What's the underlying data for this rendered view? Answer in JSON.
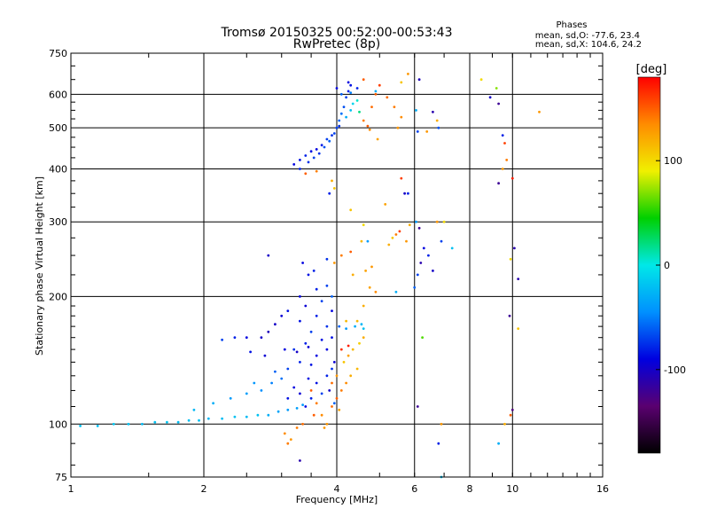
{
  "chart_data": {
    "type": "scatter",
    "title": "Tromsø 20150325 00:52:00-00:53:43",
    "subtitle": "RwPretec (8p)",
    "stats": {
      "heading": "Phases",
      "o_line": "mean, sd,O: -77.6, 23.4",
      "x_line": "mean, sd,X: 104.6, 24.2"
    },
    "xlabel": "Frequency [MHz]",
    "ylabel": "Stationary phase Virtual Height [km]",
    "x_scale": "log2",
    "y_scale": "log",
    "xlim": [
      1,
      16
    ],
    "ylim": [
      75,
      750
    ],
    "x_ticks": [
      1,
      2,
      4,
      6,
      8,
      10,
      16
    ],
    "x_ticklabels": [
      "1",
      "2",
      "4",
      "6",
      "8",
      "10",
      "16"
    ],
    "y_ticks": [
      75,
      100,
      200,
      300,
      400,
      500,
      600,
      750
    ],
    "y_ticklabels": [
      "75",
      "100",
      "200",
      "300",
      "400",
      "500",
      "600",
      "750"
    ],
    "grid": true,
    "colorbar": {
      "label": "[deg]",
      "range": [
        -180,
        180
      ],
      "ticks": [
        -100,
        0,
        100
      ],
      "ticklabels": [
        "-100",
        "0",
        "100"
      ],
      "colors": [
        "#000000",
        "#5a0070",
        "#0000e0",
        "#0090ff",
        "#00e8e8",
        "#00d000",
        "#f0f000",
        "#ff8c00",
        "#ff0000"
      ]
    },
    "series": [
      {
        "points": [
          [
            1.05,
            99,
            -20
          ],
          [
            1.15,
            99,
            -22
          ],
          [
            1.25,
            100,
            -18
          ],
          [
            1.35,
            100,
            -20
          ],
          [
            1.45,
            100,
            -24
          ],
          [
            1.55,
            101,
            -20
          ],
          [
            1.65,
            101,
            -18
          ],
          [
            1.75,
            101,
            -22
          ],
          [
            1.85,
            102,
            -20
          ],
          [
            1.95,
            102,
            -20
          ],
          [
            2.05,
            103,
            -25
          ],
          [
            2.2,
            103,
            -22
          ],
          [
            2.35,
            104,
            -20
          ],
          [
            2.5,
            104,
            -24
          ],
          [
            2.65,
            105,
            -20
          ],
          [
            2.8,
            105,
            -30
          ],
          [
            2.95,
            107,
            -35
          ],
          [
            3.1,
            108,
            -40
          ],
          [
            3.25,
            109,
            -38
          ],
          [
            3.35,
            111,
            -40
          ],
          [
            1.9,
            108,
            -25
          ],
          [
            2.1,
            112,
            -30
          ],
          [
            2.3,
            115,
            -40
          ],
          [
            2.5,
            118,
            -38
          ],
          [
            2.7,
            120,
            -45
          ],
          [
            2.85,
            125,
            -50
          ],
          [
            3.0,
            128,
            -55
          ],
          [
            2.6,
            125,
            -42
          ],
          [
            2.9,
            133,
            -60
          ],
          [
            3.1,
            135,
            -70
          ],
          [
            3.3,
            140,
            -80
          ],
          [
            3.5,
            138,
            -85
          ],
          [
            3.6,
            145,
            -90
          ],
          [
            3.2,
            150,
            -75
          ],
          [
            3.4,
            155,
            -80
          ],
          [
            3.7,
            158,
            -85
          ],
          [
            3.5,
            165,
            -70
          ],
          [
            3.8,
            170,
            -75
          ],
          [
            3.3,
            175,
            -85
          ],
          [
            3.6,
            180,
            -80
          ],
          [
            3.9,
            185,
            -90
          ],
          [
            3.4,
            190,
            -95
          ],
          [
            3.7,
            195,
            -70
          ],
          [
            3.9,
            200,
            -60
          ],
          [
            3.6,
            208,
            -80
          ],
          [
            3.8,
            212,
            -70
          ],
          [
            3.3,
            200,
            -90
          ],
          [
            3.1,
            185,
            -85
          ],
          [
            2.9,
            172,
            -100
          ],
          [
            3.0,
            180,
            -95
          ],
          [
            2.7,
            160,
            -100
          ],
          [
            2.8,
            165,
            -105
          ],
          [
            2.5,
            160,
            -90
          ],
          [
            2.35,
            160,
            -80
          ],
          [
            2.2,
            158,
            -70
          ],
          [
            2.55,
            148,
            -85
          ],
          [
            2.75,
            145,
            -95
          ],
          [
            3.05,
            150,
            -90
          ],
          [
            3.25,
            148,
            -100
          ],
          [
            3.45,
            152,
            -95
          ],
          [
            3.6,
            125,
            -85
          ],
          [
            3.8,
            130,
            -80
          ],
          [
            3.9,
            135,
            -75
          ],
          [
            3.7,
            118,
            -70
          ],
          [
            3.95,
            112,
            -60
          ],
          [
            3.5,
            115,
            -80
          ],
          [
            3.45,
            128,
            -85
          ],
          [
            3.2,
            122,
            -90
          ],
          [
            3.3,
            118,
            -95
          ],
          [
            3.4,
            110,
            -90
          ],
          [
            3.1,
            115,
            -85
          ],
          [
            3.85,
            120,
            -100
          ],
          [
            3.95,
            140,
            -95
          ],
          [
            3.8,
            150,
            -90
          ],
          [
            3.9,
            160,
            -85
          ],
          [
            4.05,
            170,
            -60
          ],
          [
            4.2,
            168,
            -40
          ],
          [
            4.4,
            170,
            -30
          ],
          [
            4.55,
            172,
            -25
          ],
          [
            4.6,
            168,
            -20
          ],
          [
            3.5,
            120,
            150
          ],
          [
            3.6,
            112,
            140
          ],
          [
            3.7,
            105,
            135
          ],
          [
            3.8,
            100,
            130
          ],
          [
            3.9,
            110,
            145
          ],
          [
            4.0,
            115,
            150
          ],
          [
            4.1,
            120,
            140
          ],
          [
            4.2,
            125,
            135
          ],
          [
            4.3,
            130,
            120
          ],
          [
            4.0,
            130,
            130
          ],
          [
            3.9,
            125,
            145
          ],
          [
            3.55,
            105,
            150
          ],
          [
            3.35,
            100,
            145
          ],
          [
            3.25,
            98,
            140
          ],
          [
            3.75,
            98,
            130
          ],
          [
            4.05,
            108,
            125
          ],
          [
            4.15,
            140,
            110
          ],
          [
            4.35,
            150,
            115
          ],
          [
            4.5,
            155,
            105
          ],
          [
            4.6,
            160,
            120
          ],
          [
            4.25,
            145,
            125
          ],
          [
            4.45,
            135,
            115
          ],
          [
            4.1,
            150,
            165
          ],
          [
            4.25,
            153,
            170
          ],
          [
            3.15,
            92,
            130
          ],
          [
            3.05,
            95,
            135
          ],
          [
            3.1,
            90,
            140
          ],
          [
            3.3,
            82,
            -110
          ],
          [
            3.2,
            410,
            -90
          ],
          [
            3.3,
            420,
            -85
          ],
          [
            3.4,
            430,
            -80
          ],
          [
            3.5,
            440,
            -85
          ],
          [
            3.6,
            445,
            -90
          ],
          [
            3.7,
            455,
            -80
          ],
          [
            3.8,
            470,
            -70
          ],
          [
            3.9,
            480,
            -75
          ],
          [
            4.0,
            500,
            -70
          ],
          [
            4.05,
            520,
            -60
          ],
          [
            4.1,
            540,
            -55
          ],
          [
            4.15,
            560,
            -65
          ],
          [
            4.2,
            590,
            -70
          ],
          [
            4.25,
            610,
            -80
          ],
          [
            4.3,
            630,
            -85
          ],
          [
            4.0,
            620,
            -90
          ],
          [
            4.1,
            600,
            -60
          ],
          [
            3.3,
            400,
            -80
          ],
          [
            3.45,
            415,
            -75
          ],
          [
            3.55,
            425,
            -70
          ],
          [
            3.65,
            435,
            -75
          ],
          [
            3.75,
            450,
            -65
          ],
          [
            3.85,
            465,
            -60
          ],
          [
            3.95,
            485,
            -70
          ],
          [
            4.05,
            505,
            -75
          ],
          [
            4.2,
            530,
            -30
          ],
          [
            4.3,
            550,
            -20
          ],
          [
            4.35,
            570,
            -10
          ],
          [
            4.45,
            580,
            5
          ],
          [
            4.5,
            545,
            20
          ],
          [
            4.6,
            520,
            140
          ],
          [
            4.7,
            505,
            150
          ],
          [
            4.75,
            495,
            135
          ],
          [
            4.8,
            560,
            145
          ],
          [
            4.9,
            600,
            150
          ],
          [
            5.0,
            630,
            160
          ],
          [
            5.2,
            590,
            145
          ],
          [
            5.4,
            560,
            140
          ],
          [
            5.6,
            530,
            135
          ],
          [
            5.5,
            500,
            130
          ],
          [
            4.95,
            470,
            125
          ],
          [
            4.6,
            650,
            150
          ],
          [
            5.6,
            640,
            110
          ],
          [
            5.8,
            670,
            130
          ],
          [
            4.25,
            640,
            -90
          ],
          [
            4.45,
            620,
            -80
          ],
          [
            4.9,
            610,
            -30
          ],
          [
            4.3,
            605,
            -50
          ],
          [
            3.6,
            395,
            140
          ],
          [
            3.4,
            390,
            150
          ],
          [
            3.9,
            375,
            120
          ],
          [
            3.95,
            360,
            110
          ],
          [
            3.85,
            350,
            -80
          ],
          [
            2.8,
            250,
            -100
          ],
          [
            3.35,
            240,
            -90
          ],
          [
            3.45,
            225,
            -85
          ],
          [
            3.55,
            230,
            -80
          ],
          [
            3.8,
            245,
            -75
          ],
          [
            3.95,
            240,
            130
          ],
          [
            4.1,
            250,
            140
          ],
          [
            4.3,
            255,
            150
          ],
          [
            4.55,
            270,
            115
          ],
          [
            4.65,
            230,
            125
          ],
          [
            4.35,
            225,
            120
          ],
          [
            4.8,
            235,
            130
          ],
          [
            4.75,
            210,
            125
          ],
          [
            4.9,
            205,
            135
          ],
          [
            4.6,
            190,
            120
          ],
          [
            4.45,
            175,
            115
          ],
          [
            4.2,
            175,
            115
          ],
          [
            5.25,
            265,
            120
          ],
          [
            5.35,
            275,
            110
          ],
          [
            5.45,
            280,
            140
          ],
          [
            5.55,
            285,
            160
          ],
          [
            5.75,
            270,
            130
          ],
          [
            5.85,
            295,
            120
          ],
          [
            5.15,
            330,
            125
          ],
          [
            4.3,
            320,
            110
          ],
          [
            4.6,
            295,
            100
          ],
          [
            4.7,
            270,
            -40
          ],
          [
            5.7,
            350,
            -100
          ],
          [
            5.8,
            350,
            -80
          ],
          [
            5.6,
            380,
            160
          ],
          [
            5.45,
            205,
            -30
          ],
          [
            6.15,
            650,
            -105
          ],
          [
            6.05,
            550,
            -30
          ],
          [
            6.1,
            490,
            -70
          ],
          [
            6.6,
            545,
            -110
          ],
          [
            6.75,
            520,
            120
          ],
          [
            6.8,
            500,
            -65
          ],
          [
            6.4,
            490,
            130
          ],
          [
            6.05,
            300,
            -40
          ],
          [
            6.15,
            290,
            -120
          ],
          [
            6.3,
            260,
            -90
          ],
          [
            6.45,
            250,
            -80
          ],
          [
            6.75,
            300,
            130
          ],
          [
            7.0,
            300,
            100
          ],
          [
            7.3,
            260,
            -20
          ],
          [
            6.9,
            270,
            -70
          ],
          [
            6.2,
            240,
            -110
          ],
          [
            6.1,
            225,
            -70
          ],
          [
            6.6,
            230,
            -100
          ],
          [
            6.0,
            210,
            -60
          ],
          [
            6.25,
            160,
            60
          ],
          [
            6.1,
            110,
            -120
          ],
          [
            6.9,
            100,
            130
          ],
          [
            6.8,
            90,
            -80
          ],
          [
            6.9,
            75,
            -20
          ],
          [
            8.5,
            650,
            100
          ],
          [
            9.2,
            620,
            70
          ],
          [
            8.9,
            590,
            -100
          ],
          [
            9.3,
            570,
            -120
          ],
          [
            9.5,
            480,
            -80
          ],
          [
            9.6,
            460,
            160
          ],
          [
            9.7,
            420,
            140
          ],
          [
            9.5,
            400,
            130
          ],
          [
            9.3,
            370,
            -120
          ],
          [
            10.0,
            380,
            170
          ],
          [
            10.1,
            260,
            -110
          ],
          [
            9.9,
            245,
            100
          ],
          [
            10.3,
            220,
            -110
          ],
          [
            9.85,
            180,
            -120
          ],
          [
            10.3,
            168,
            110
          ],
          [
            9.9,
            105,
            150
          ],
          [
            10.0,
            108,
            -130
          ],
          [
            9.6,
            100,
            120
          ],
          [
            9.3,
            90,
            -30
          ],
          [
            11.5,
            545,
            130
          ]
        ]
      }
    ]
  }
}
